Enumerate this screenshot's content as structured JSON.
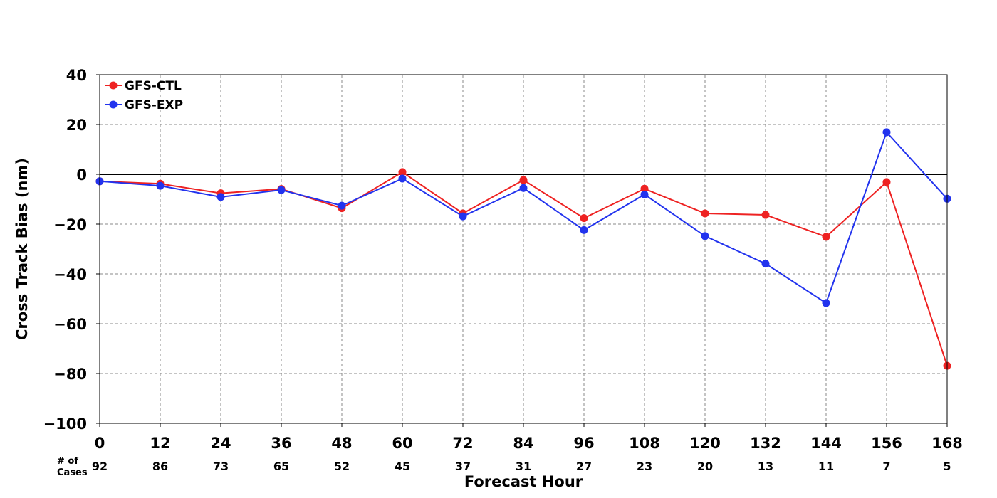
{
  "chart_data": {
    "type": "line",
    "xlabel": "Forecast Hour",
    "ylabel": "Cross Track Bias (nm)",
    "x": [
      0,
      12,
      24,
      36,
      48,
      60,
      72,
      84,
      96,
      108,
      120,
      132,
      144,
      156,
      168
    ],
    "x_tick_labels": [
      "0",
      "12",
      "24",
      "36",
      "48",
      "60",
      "72",
      "84",
      "96",
      "108",
      "120",
      "132",
      "144",
      "156",
      "168"
    ],
    "xlim": [
      0,
      168
    ],
    "ylim": [
      -100,
      40
    ],
    "y_ticks": [
      40,
      20,
      0,
      -20,
      -40,
      -60,
      -80,
      -100
    ],
    "y_tick_labels": [
      "40",
      "20",
      "0",
      "−20",
      "−40",
      "−60",
      "−80",
      "−100"
    ],
    "grid": true,
    "zero_line": true,
    "legend_position": "top-left",
    "series": [
      {
        "name": "GFS-CTL",
        "color": "#ee2222",
        "values": [
          -2.8,
          -3.8,
          -7.6,
          -5.9,
          -13.6,
          0.9,
          -15.7,
          -2.3,
          -17.6,
          -5.8,
          -15.7,
          -16.3,
          -25.1,
          -3.1,
          -76.9
        ]
      },
      {
        "name": "GFS-EXP",
        "color": "#2233ee",
        "values": [
          -2.8,
          -4.6,
          -9.1,
          -6.3,
          -12.6,
          -1.7,
          -16.9,
          -5.5,
          -22.4,
          -8.1,
          -24.8,
          -35.9,
          -51.7,
          16.9,
          -9.8
        ]
      }
    ],
    "cases": {
      "header": "# of\nCases",
      "values": [
        "92",
        "86",
        "73",
        "65",
        "52",
        "45",
        "37",
        "31",
        "27",
        "23",
        "20",
        "13",
        "11",
        "7",
        "5"
      ]
    }
  }
}
